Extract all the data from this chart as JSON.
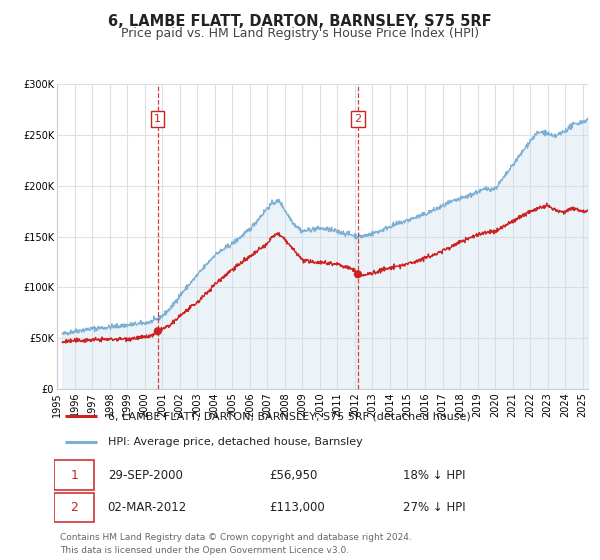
{
  "title": "6, LAMBE FLATT, DARTON, BARNSLEY, S75 5RF",
  "subtitle": "Price paid vs. HM Land Registry's House Price Index (HPI)",
  "ylim": [
    0,
    300000
  ],
  "xlim_start": 1995.3,
  "xlim_end": 2025.3,
  "yticks": [
    0,
    50000,
    100000,
    150000,
    200000,
    250000,
    300000
  ],
  "ytick_labels": [
    "£0",
    "£50K",
    "£100K",
    "£150K",
    "£200K",
    "£250K",
    "£300K"
  ],
  "bg_color": "#ffffff",
  "plot_bg_color": "#ffffff",
  "grid_color": "#e0e0e0",
  "sale1_date": 2000.75,
  "sale1_price": 56950,
  "sale1_label": "1",
  "sale1_hpi_pct": "18% ↓ HPI",
  "sale1_date_str": "29-SEP-2000",
  "sale2_date": 2012.17,
  "sale2_price": 113000,
  "sale2_label": "2",
  "sale2_hpi_pct": "27% ↓ HPI",
  "sale2_date_str": "02-MAR-2012",
  "hpi_color": "#7bafd4",
  "hpi_fill_color": "#c8dff0",
  "price_color": "#cc2222",
  "legend_label_price": "6, LAMBE FLATT, DARTON, BARNSLEY, S75 5RF (detached house)",
  "legend_label_hpi": "HPI: Average price, detached house, Barnsley",
  "footer_text": "Contains HM Land Registry data © Crown copyright and database right 2024.\nThis data is licensed under the Open Government Licence v3.0.",
  "title_fontsize": 10.5,
  "subtitle_fontsize": 9,
  "tick_fontsize": 7,
  "legend_fontsize": 8,
  "footer_fontsize": 6.5
}
